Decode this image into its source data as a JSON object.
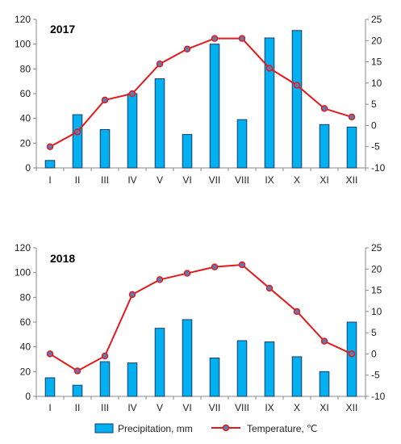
{
  "chart_data": [
    {
      "type": "bar+line",
      "title": "2017",
      "categories": [
        "I",
        "II",
        "III",
        "IV",
        "V",
        "VI",
        "VII",
        "VIII",
        "IX",
        "X",
        "XI",
        "XII"
      ],
      "series": [
        {
          "name": "Precipitation, mm",
          "type": "bar",
          "axis": "left",
          "values": [
            6,
            43,
            31,
            60,
            72,
            27,
            100,
            39,
            105,
            111,
            35,
            33
          ]
        },
        {
          "name": "Temperature, ℃",
          "type": "line",
          "axis": "right",
          "values": [
            -5,
            -1.5,
            6,
            7.5,
            14.5,
            18,
            20.5,
            20.5,
            13.5,
            9.5,
            4,
            2
          ]
        }
      ],
      "ylim_left": [
        0,
        120
      ],
      "yticks_left": [
        "0",
        "20",
        "40",
        "60",
        "80",
        "100",
        "120"
      ],
      "ylim_right": [
        -10,
        25
      ],
      "yticks_right": [
        "-10",
        "-5",
        "0",
        "5",
        "10",
        "15",
        "20",
        "25"
      ],
      "colors": {
        "bar": "#00B0F0",
        "bar_edge": "#1F3864",
        "line": "#E31A1C",
        "marker_fill": "#5B7DB5"
      }
    },
    {
      "type": "bar+line",
      "title": "2018",
      "categories": [
        "I",
        "II",
        "III",
        "IV",
        "V",
        "VI",
        "VII",
        "VIII",
        "IX",
        "X",
        "XI",
        "XII"
      ],
      "series": [
        {
          "name": "Precipitation, mm",
          "type": "bar",
          "axis": "left",
          "values": [
            15,
            9,
            28,
            27,
            55,
            62,
            31,
            45,
            44,
            32,
            20,
            60
          ]
        },
        {
          "name": "Temperature, ℃",
          "type": "line",
          "axis": "right",
          "values": [
            0,
            -4,
            -0.5,
            14,
            17.5,
            19,
            20.5,
            21,
            15.5,
            10,
            3,
            0
          ]
        }
      ],
      "ylim_left": [
        0,
        120
      ],
      "yticks_left": [
        "0",
        "20",
        "40",
        "60",
        "80",
        "100",
        "120"
      ],
      "ylim_right": [
        -10,
        25
      ],
      "yticks_right": [
        "-10",
        "-5",
        "0",
        "5",
        "10",
        "15",
        "20",
        "25"
      ],
      "colors": {
        "bar": "#00B0F0",
        "bar_edge": "#1F3864",
        "line": "#E31A1C",
        "marker_fill": "#5B7DB5"
      }
    }
  ],
  "legend": {
    "placement": "bottom",
    "items": [
      {
        "label": "Precipitation, mm",
        "kind": "bar"
      },
      {
        "label": "Temperature, ℃",
        "kind": "line"
      }
    ]
  }
}
